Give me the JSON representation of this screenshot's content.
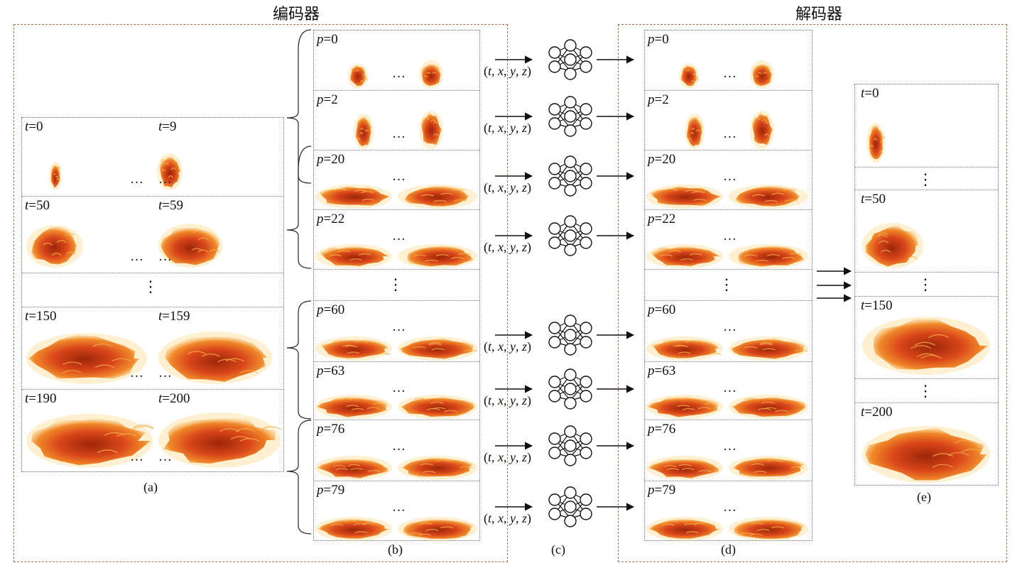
{
  "titles": {
    "encoder": "编码器",
    "decoder": "解码器"
  },
  "captions": {
    "a": "(a)",
    "b": "(b)",
    "c": "(c)",
    "d": "(d)",
    "e": "(e)"
  },
  "coord_label": "(t, x, y, z)",
  "ellipsis_h": "…",
  "ellipsis_v": "⋮",
  "panel_a": [
    {
      "left": "t=0",
      "right": "t=9"
    },
    {
      "left": "t=50",
      "right": "t=59"
    },
    {
      "left": "t=150",
      "right": "t=159"
    },
    {
      "left": "t=190",
      "right": "t=200"
    }
  ],
  "panel_b": [
    "p=0",
    "p=2",
    "p=20",
    "p=22",
    "p=60",
    "p=63",
    "p=76",
    "p=79"
  ],
  "panel_d": [
    "p=0",
    "p=2",
    "p=20",
    "p=22",
    "p=60",
    "p=63",
    "p=76",
    "p=79"
  ],
  "panel_e": [
    "t=0",
    "t=50",
    "t=150",
    "t=200"
  ],
  "colors": {
    "dash": "#b0714a",
    "fire_core": "#b8300c",
    "fire_mid": "#e8661c",
    "fire_glow": "#fbd57a"
  },
  "icons": {
    "network": "neural-network-icon",
    "arrow": "arrow-right-icon",
    "brace": "brace-icon"
  }
}
